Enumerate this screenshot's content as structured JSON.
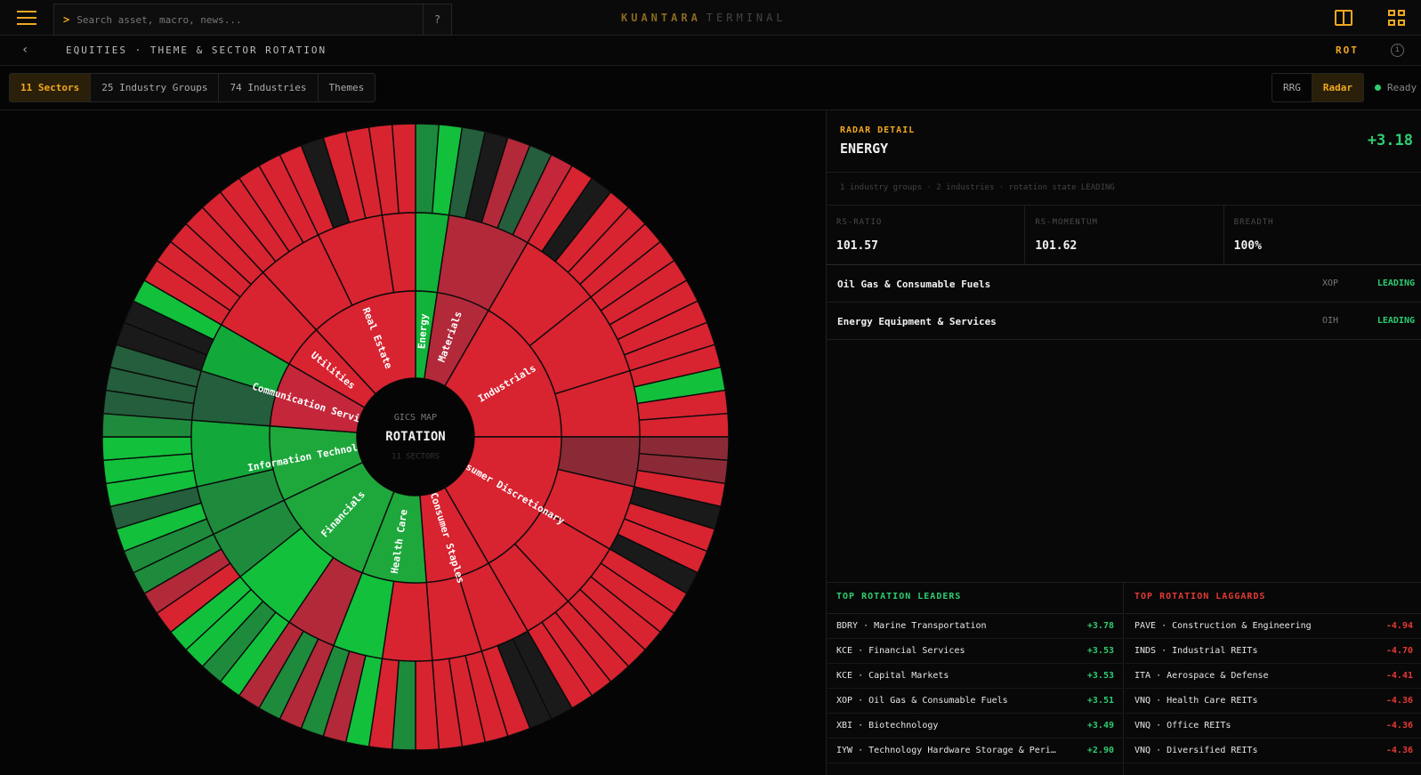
{
  "app": {
    "brand_primary": "KUANTARA",
    "brand_secondary": "TERMINAL",
    "accent": "#f0a820"
  },
  "search": {
    "prompt": ">",
    "placeholder": "Search asset, macro, news...",
    "help_label": "?"
  },
  "subheader": {
    "back_label": "‹",
    "breadcrumb": "EQUITIES · THEME & SECTOR ROTATION",
    "code": "ROT",
    "info_label": "i"
  },
  "tabs": [
    {
      "label": "11 Sectors",
      "active": true
    },
    {
      "label": "25 Industry Groups",
      "active": false
    },
    {
      "label": "74 Industries",
      "active": false
    },
    {
      "label": "Themes",
      "active": false
    }
  ],
  "view_toggle": [
    {
      "label": "RRG",
      "active": false
    },
    {
      "label": "Radar",
      "active": true
    }
  ],
  "status": {
    "label": "Ready",
    "color": "#2ecc71"
  },
  "chart_data": {
    "type": "sunburst",
    "center": {
      "kicker": "GICS MAP",
      "title": "ROTATION",
      "sub": "11 SECTORS"
    },
    "sectors": [
      {
        "name": "Energy",
        "color": "#12b33a",
        "groups": [
          {
            "color": "#12b33a",
            "industries": [
              "#1c8a3c",
              "#12c03c"
            ]
          }
        ]
      },
      {
        "name": "Materials",
        "color": "#b2293a",
        "groups": [
          {
            "color": "#b2293a",
            "industries": [
              "#245e3c",
              "#1a1a1a",
              "#b2293a",
              "#245e3c",
              "#c4263a"
            ]
          }
        ]
      },
      {
        "name": "Industrials",
        "color": "#d82330",
        "groups": [
          {
            "color": "#d82330",
            "industries": [
              "#d82330",
              "#1a1a1a",
              "#d82330",
              "#d82330",
              "#d82330"
            ]
          },
          {
            "color": "#d82330",
            "industries": [
              "#d82330",
              "#d82330",
              "#d82330",
              "#d82330",
              "#d82330"
            ]
          },
          {
            "color": "#d82330",
            "industries": [
              "#d82330",
              "#12c03c",
              "#d82330",
              "#d82330"
            ]
          }
        ]
      },
      {
        "name": "Consumer Discretionary",
        "color": "#d82330",
        "groups": [
          {
            "color": "#8a2a36",
            "industries": [
              "#8a2a36",
              "#8a2a36",
              "#d82330"
            ]
          },
          {
            "color": "#d82330",
            "industries": [
              "#1a1a1a",
              "#d82330",
              "#d82330",
              "#1a1a1a"
            ]
          },
          {
            "color": "#d82330",
            "industries": [
              "#d82330",
              "#d82330",
              "#d82330",
              "#d82330"
            ]
          },
          {
            "color": "#d82330",
            "industries": [
              "#d82330",
              "#d82330",
              "#d82330"
            ]
          }
        ]
      },
      {
        "name": "Consumer Staples",
        "color": "#d82330",
        "groups": [
          {
            "color": "#d82330",
            "industries": [
              "#1a1a1a",
              "#1a1a1a",
              "#d82330"
            ]
          },
          {
            "color": "#d82330",
            "industries": [
              "#d82330",
              "#d82330",
              "#d82330"
            ]
          }
        ]
      },
      {
        "name": "Health Care",
        "color": "#1ea83c",
        "groups": [
          {
            "color": "#d82330",
            "industries": [
              "#d82330",
              "#1e8a3c",
              "#d82330"
            ]
          },
          {
            "color": "#12c03c",
            "industries": [
              "#12c03c",
              "#b2293a",
              "#1e8a3c"
            ]
          }
        ]
      },
      {
        "name": "Financials",
        "color": "#1ea83c",
        "groups": [
          {
            "color": "#b2293a",
            "industries": [
              "#b2293a",
              "#1e8a3c",
              "#b2293a"
            ]
          },
          {
            "color": "#12c03c",
            "industries": [
              "#12c03c",
              "#1e8a3c",
              "#12c03c",
              "#12c03c"
            ]
          },
          {
            "color": "#1e8a3c",
            "industries": [
              "#d82330",
              "#b2293a",
              "#1e8a3c"
            ]
          }
        ]
      },
      {
        "name": "Information Technology",
        "color": "#1ea83c",
        "groups": [
          {
            "color": "#1e8a3c",
            "industries": [
              "#1e8a3c",
              "#12c03c",
              "#245e3c"
            ]
          },
          {
            "color": "#12a83a",
            "industries": [
              "#12c03c",
              "#12c03c",
              "#12c03c",
              "#1e8a3c"
            ]
          }
        ]
      },
      {
        "name": "Communication Services",
        "color": "#c4263a",
        "groups": [
          {
            "color": "#245e3c",
            "industries": [
              "#245e3c",
              "#245e3c",
              "#245e3c"
            ]
          },
          {
            "color": "#12a83a",
            "industries": [
              "#1a1a1a",
              "#1a1a1a",
              "#12c03c"
            ]
          }
        ]
      },
      {
        "name": "Utilities",
        "color": "#d82330",
        "groups": [
          {
            "color": "#d82330",
            "industries": [
              "#d82330",
              "#d82330",
              "#d82330",
              "#d82330"
            ]
          }
        ]
      },
      {
        "name": "Real Estate",
        "color": "#d82330",
        "groups": [
          {
            "color": "#d82330",
            "industries": [
              "#d82330",
              "#d82330",
              "#d82330",
              "#d82330"
            ]
          },
          {
            "color": "#d82330",
            "industries": [
              "#d82330",
              "#1a1a1a",
              "#d82330",
              "#d82330"
            ]
          },
          {
            "color": "#d82330",
            "industries": [
              "#d82330",
              "#d82330"
            ]
          }
        ]
      }
    ]
  },
  "detail": {
    "kicker": "RADAR DETAIL",
    "title": "ENERGY",
    "score": "+3.18",
    "meta": "1 industry groups · 2 industries · rotation state LEADING",
    "metrics": [
      {
        "label": "RS-RATIO",
        "value": "101.57"
      },
      {
        "label": "RS-MOMENTUM",
        "value": "101.62"
      },
      {
        "label": "BREADTH",
        "value": "100%"
      }
    ],
    "industries": [
      {
        "name": "Oil Gas & Consumable Fuels",
        "ticker": "XOP",
        "state": "LEADING"
      },
      {
        "name": "Energy Equipment & Services",
        "ticker": "OIH",
        "state": "LEADING"
      }
    ]
  },
  "leaders": {
    "title": "TOP ROTATION LEADERS",
    "rows": [
      {
        "label": "BDRY · Marine Transportation",
        "value": "+3.78"
      },
      {
        "label": "KCE · Financial Services",
        "value": "+3.53"
      },
      {
        "label": "KCE · Capital Markets",
        "value": "+3.53"
      },
      {
        "label": "XOP · Oil Gas & Consumable Fuels",
        "value": "+3.51"
      },
      {
        "label": "XBI · Biotechnology",
        "value": "+3.49"
      },
      {
        "label": "IYW · Technology Hardware Storage & Peri…",
        "value": "+2.90"
      }
    ]
  },
  "laggards": {
    "title": "TOP ROTATION LAGGARDS",
    "rows": [
      {
        "label": "PAVE · Construction & Engineering",
        "value": "-4.94"
      },
      {
        "label": "INDS · Industrial REITs",
        "value": "-4.70"
      },
      {
        "label": "ITA · Aerospace & Defense",
        "value": "-4.41"
      },
      {
        "label": "VNQ · Health Care REITs",
        "value": "-4.36"
      },
      {
        "label": "VNQ · Office REITs",
        "value": "-4.36"
      },
      {
        "label": "VNQ · Diversified REITs",
        "value": "-4.36"
      }
    ]
  }
}
